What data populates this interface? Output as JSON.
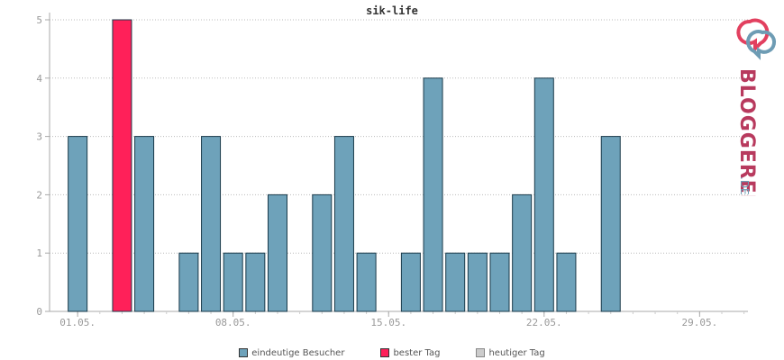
{
  "chart_data": {
    "type": "bar",
    "title": "sik-life",
    "xlabel": "",
    "ylabel": "",
    "ylim": [
      0,
      5
    ],
    "yticks": [
      0,
      1,
      2,
      3,
      4,
      5
    ],
    "x_tick_labels": [
      {
        "day": 1,
        "label": "01.05."
      },
      {
        "day": 8,
        "label": "08.05."
      },
      {
        "day": 15,
        "label": "15.05."
      },
      {
        "day": 22,
        "label": "22.05."
      },
      {
        "day": 29,
        "label": "29.05."
      }
    ],
    "days": [
      1,
      2,
      3,
      4,
      5,
      6,
      7,
      8,
      9,
      10,
      11,
      12,
      13,
      14,
      15,
      16,
      17,
      18,
      19,
      20,
      21,
      22,
      23,
      24,
      25,
      26,
      27,
      28,
      29,
      30,
      31
    ],
    "values": [
      3,
      0,
      5,
      3,
      0,
      1,
      3,
      1,
      1,
      2,
      0,
      2,
      3,
      1,
      0,
      1,
      4,
      1,
      1,
      1,
      2,
      4,
      1,
      0,
      3,
      0,
      0,
      0,
      0,
      0,
      0
    ],
    "best_day": 3,
    "grid": true,
    "legend_placement": "bottom",
    "colors": {
      "bar": "#6ea2ba",
      "best": "#ff2059",
      "today": "#cccccc",
      "bar_stroke": "#1a3a4a"
    },
    "legend": [
      {
        "label": "eindeutige Besucher",
        "color": "#6ea2ba"
      },
      {
        "label": "bester Tag",
        "color": "#ff2059"
      },
      {
        "label": "heutiger Tag",
        "color": "#cccccc"
      }
    ]
  },
  "logo": {
    "text": "BLOGGEREI",
    "suffix": ".DE"
  }
}
